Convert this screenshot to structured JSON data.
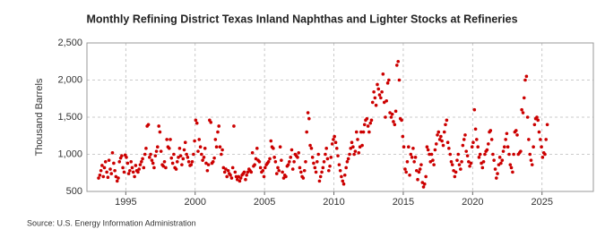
{
  "chart_data": {
    "type": "scatter",
    "title": "Monthly Refining District Texas Inland Naphthas and Lighter Stocks at Refineries",
    "y_label": "Thousand Barrels",
    "source": "Source: U.S. Energy Information Administration",
    "color": "#cc0000",
    "grid": true,
    "xlim": [
      1992.2,
      2028.7
    ],
    "ylim": [
      500,
      2500
    ],
    "xticks": [
      1995,
      2000,
      2005,
      2010,
      2015,
      2020,
      2025
    ],
    "yticks": [
      500,
      {
        "value": 1000,
        "label": "1,000"
      },
      {
        "value": 1500,
        "label": "1,500"
      },
      {
        "value": 2000,
        "label": "2,000"
      },
      {
        "value": 2500,
        "label": "2,500"
      }
    ],
    "x": [
      1993.04,
      1993.13,
      1993.21,
      1993.29,
      1993.38,
      1993.46,
      1993.54,
      1993.63,
      1993.71,
      1993.79,
      1993.88,
      1993.96,
      1994.04,
      1994.13,
      1994.21,
      1994.29,
      1994.38,
      1994.46,
      1994.54,
      1994.63,
      1994.71,
      1994.79,
      1994.88,
      1994.96,
      1995.04,
      1995.13,
      1995.21,
      1995.29,
      1995.38,
      1995.46,
      1995.54,
      1995.63,
      1995.71,
      1995.79,
      1995.88,
      1995.96,
      1996.04,
      1996.13,
      1996.21,
      1996.29,
      1996.38,
      1996.46,
      1996.54,
      1996.63,
      1996.71,
      1996.79,
      1996.88,
      1996.96,
      1997.04,
      1997.13,
      1997.21,
      1997.29,
      1997.38,
      1997.46,
      1997.54,
      1997.63,
      1997.71,
      1997.79,
      1997.88,
      1997.96,
      1998.04,
      1998.13,
      1998.21,
      1998.29,
      1998.38,
      1998.46,
      1998.54,
      1998.63,
      1998.71,
      1998.79,
      1998.88,
      1998.96,
      1999.04,
      1999.13,
      1999.21,
      1999.29,
      1999.38,
      1999.46,
      1999.54,
      1999.63,
      1999.71,
      1999.79,
      1999.88,
      1999.96,
      2000.04,
      2000.13,
      2000.21,
      2000.29,
      2000.38,
      2000.46,
      2000.54,
      2000.63,
      2000.71,
      2000.79,
      2000.88,
      2000.96,
      2001.04,
      2001.13,
      2001.21,
      2001.29,
      2001.38,
      2001.46,
      2001.54,
      2001.63,
      2001.71,
      2001.79,
      2001.88,
      2001.96,
      2002.04,
      2002.13,
      2002.21,
      2002.29,
      2002.38,
      2002.46,
      2002.54,
      2002.63,
      2002.71,
      2002.79,
      2002.88,
      2002.96,
      2003.04,
      2003.13,
      2003.21,
      2003.29,
      2003.38,
      2003.46,
      2003.54,
      2003.63,
      2003.71,
      2003.79,
      2003.88,
      2003.96,
      2004.04,
      2004.13,
      2004.21,
      2004.29,
      2004.38,
      2004.46,
      2004.54,
      2004.63,
      2004.71,
      2004.79,
      2004.88,
      2004.96,
      2005.04,
      2005.13,
      2005.21,
      2005.29,
      2005.38,
      2005.46,
      2005.54,
      2005.63,
      2005.71,
      2005.79,
      2005.88,
      2005.96,
      2006.04,
      2006.13,
      2006.21,
      2006.29,
      2006.38,
      2006.46,
      2006.54,
      2006.63,
      2006.71,
      2006.79,
      2006.88,
      2006.96,
      2007.04,
      2007.13,
      2007.21,
      2007.29,
      2007.38,
      2007.46,
      2007.54,
      2007.63,
      2007.71,
      2007.79,
      2007.88,
      2007.96,
      2008.04,
      2008.13,
      2008.21,
      2008.29,
      2008.38,
      2008.46,
      2008.54,
      2008.63,
      2008.71,
      2008.79,
      2008.88,
      2008.96,
      2009.04,
      2009.13,
      2009.21,
      2009.29,
      2009.38,
      2009.46,
      2009.54,
      2009.63,
      2009.71,
      2009.79,
      2009.88,
      2009.96,
      2010.04,
      2010.13,
      2010.21,
      2010.29,
      2010.38,
      2010.46,
      2010.54,
      2010.63,
      2010.71,
      2010.79,
      2010.88,
      2010.96,
      2011.04,
      2011.13,
      2011.21,
      2011.29,
      2011.38,
      2011.46,
      2011.54,
      2011.63,
      2011.71,
      2011.79,
      2011.88,
      2011.96,
      2012.04,
      2012.13,
      2012.21,
      2012.29,
      2012.38,
      2012.46,
      2012.54,
      2012.63,
      2012.71,
      2012.79,
      2012.88,
      2012.96,
      2013.04,
      2013.13,
      2013.21,
      2013.29,
      2013.38,
      2013.46,
      2013.54,
      2013.63,
      2013.71,
      2013.79,
      2013.88,
      2013.96,
      2014.04,
      2014.13,
      2014.21,
      2014.29,
      2014.38,
      2014.46,
      2014.54,
      2014.63,
      2014.71,
      2014.79,
      2014.88,
      2014.96,
      2015.04,
      2015.13,
      2015.21,
      2015.29,
      2015.38,
      2015.46,
      2015.54,
      2015.63,
      2015.71,
      2015.79,
      2015.88,
      2015.96,
      2016.04,
      2016.13,
      2016.21,
      2016.29,
      2016.38,
      2016.46,
      2016.54,
      2016.63,
      2016.71,
      2016.79,
      2016.88,
      2016.96,
      2017.04,
      2017.13,
      2017.21,
      2017.29,
      2017.38,
      2017.46,
      2017.54,
      2017.63,
      2017.71,
      2017.79,
      2017.88,
      2017.96,
      2018.04,
      2018.13,
      2018.21,
      2018.29,
      2018.38,
      2018.46,
      2018.54,
      2018.63,
      2018.71,
      2018.79,
      2018.88,
      2018.96,
      2019.04,
      2019.13,
      2019.21,
      2019.29,
      2019.38,
      2019.46,
      2019.54,
      2019.63,
      2019.71,
      2019.79,
      2019.88,
      2019.96,
      2020.04,
      2020.13,
      2020.21,
      2020.29,
      2020.38,
      2020.46,
      2020.54,
      2020.63,
      2020.71,
      2020.79,
      2020.88,
      2020.96,
      2021.04,
      2021.13,
      2021.21,
      2021.29,
      2021.38,
      2021.46,
      2021.54,
      2021.63,
      2021.71,
      2021.79,
      2021.88,
      2021.96,
      2022.04,
      2022.13,
      2022.21,
      2022.29,
      2022.38,
      2022.46,
      2022.54,
      2022.63,
      2022.71,
      2022.79,
      2022.88,
      2022.96,
      2023.04,
      2023.13,
      2023.21,
      2023.29,
      2023.38,
      2023.46,
      2023.54,
      2023.63,
      2023.71,
      2023.79,
      2023.88,
      2023.96,
      2024.04,
      2024.13,
      2024.21,
      2024.29,
      2024.38,
      2024.46,
      2024.54,
      2024.63,
      2024.71,
      2024.79,
      2024.88,
      2024.96,
      2025.04,
      2025.13,
      2025.21,
      2025.29,
      2025.38
    ],
    "values": [
      680,
      720,
      780,
      850,
      700,
      820,
      900,
      760,
      690,
      920,
      800,
      740,
      1020,
      880,
      780,
      700,
      640,
      680,
      900,
      950,
      980,
      820,
      760,
      990,
      960,
      880,
      740,
      780,
      900,
      820,
      760,
      700,
      850,
      780,
      760,
      800,
      860,
      900,
      940,
      820,
      1000,
      1080,
      1380,
      1400,
      960,
      1000,
      920,
      880,
      820,
      980,
      1040,
      1100,
      1380,
      1300,
      1040,
      860,
      840,
      900,
      820,
      1200,
      1100,
      1080,
      1200,
      950,
      880,
      1000,
      820,
      800,
      900,
      960,
      1080,
      980,
      860,
      940,
      1060,
      1160,
      1000,
      960,
      900,
      850,
      860,
      900,
      1000,
      1180,
      1460,
      1420,
      1040,
      1200,
      1100,
      1000,
      920,
      960,
      1080,
      880,
      780,
      860,
      1460,
      1430,
      880,
      900,
      950,
      1200,
      1100,
      1300,
      1380,
      1100,
      1000,
      1060,
      820,
      760,
      800,
      700,
      780,
      740,
      720,
      680,
      820,
      1380,
      760,
      700,
      660,
      700,
      640,
      680,
      720,
      740,
      760,
      660,
      720,
      760,
      800,
      780,
      760,
      1020,
      840,
      860,
      940,
      1080,
      920,
      900,
      820,
      760,
      780,
      700,
      820,
      860,
      880,
      900,
      940,
      1180,
      1100,
      1080,
      960,
      900,
      740,
      820,
      780,
      1100,
      920,
      760,
      680,
      720,
      700,
      840,
      860,
      900,
      960,
      1060,
      800,
      900,
      1000,
      980,
      960,
      1020,
      820,
      760,
      700,
      680,
      780,
      900,
      1300,
      1560,
      1480,
      1120,
      1080,
      960,
      880,
      820,
      760,
      900,
      1000,
      640,
      700,
      760,
      820,
      900,
      1000,
      1080,
      940,
      780,
      840,
      960,
      1140,
      1200,
      1240,
      1160,
      1080,
      980,
      860,
      780,
      700,
      640,
      600,
      720,
      820,
      900,
      940,
      1000,
      1080,
      1160,
      1100,
      1000,
      1040,
      1300,
      1200,
      1020,
      1100,
      1300,
      1120,
      1300,
      1400,
      1460,
      1480,
      1380,
      1300,
      1420,
      1460,
      1700,
      1840,
      1760,
      1660,
      1940,
      1880,
      1800,
      1760,
      1840,
      2080,
      1700,
      1500,
      1720,
      1960,
      2000,
      1560,
      1500,
      1540,
      1440,
      1400,
      1580,
      2200,
      2250,
      2000,
      1480,
      1460,
      1240,
      1100,
      800,
      760,
      900,
      1100,
      720,
      1000,
      960,
      1080,
      900,
      960,
      780,
      660,
      760,
      800,
      860,
      620,
      560,
      600,
      700,
      1100,
      1060,
      1000,
      900,
      1000,
      920,
      860,
      1060,
      1140,
      1260,
      1300,
      1200,
      1240,
      1180,
      1120,
      1300,
      1400,
      1460,
      1160,
      1080,
      1000,
      900,
      860,
      780,
      700,
      760,
      920,
      1000,
      860,
      800,
      900,
      1120,
      1200,
      1260,
      1040,
      980,
      900,
      840,
      880,
      1100,
      1160,
      1600,
      1340,
      1200,
      1100,
      960,
      1000,
      880,
      820,
      900,
      1000,
      1040,
      1060,
      1140,
      1300,
      1320,
      1200,
      1000,
      920,
      800,
      680,
      740,
      860,
      960,
      880,
      920,
      1040,
      1100,
      1200,
      1280,
      1100,
      1000,
      860,
      820,
      760,
      1000,
      1300,
      1320,
      1260,
      1000,
      1020,
      1040,
      1600,
      1560,
      1760,
      2000,
      2050,
      1500,
      1200,
      1000,
      920,
      860,
      1100,
      1400,
      1480,
      1500,
      1460,
      1300,
      1200,
      1100,
      960,
      1020,
      1000,
      1200,
      1400
    ]
  }
}
